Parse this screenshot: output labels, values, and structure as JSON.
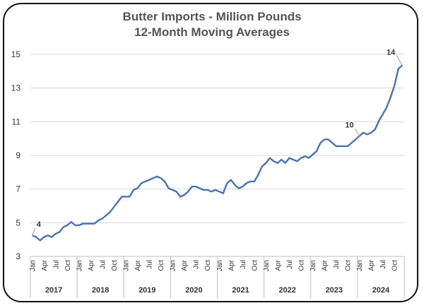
{
  "chart_data": {
    "type": "line",
    "title_line1": "Butter Imports - Million Pounds",
    "title_line2": "12-Month Moving Averages",
    "ylim": [
      3,
      15
    ],
    "yticks": [
      3,
      5,
      7,
      9,
      11,
      13,
      15
    ],
    "grid": true,
    "line_color": "#4a72b0",
    "years": [
      "2017",
      "2018",
      "2019",
      "2020",
      "2021",
      "2022",
      "2023",
      "2024"
    ],
    "month_ticks": [
      "Jan",
      "Apr",
      "Jul",
      "Oct"
    ],
    "values": [
      4.25,
      4.15,
      3.95,
      4.15,
      4.25,
      4.15,
      4.35,
      4.45,
      4.75,
      4.85,
      5.05,
      4.85,
      4.85,
      4.95,
      4.95,
      4.95,
      4.95,
      5.15,
      5.25,
      5.45,
      5.65,
      5.95,
      6.25,
      6.55,
      6.55,
      6.55,
      6.95,
      7.05,
      7.35,
      7.45,
      7.55,
      7.65,
      7.75,
      7.65,
      7.45,
      7.05,
      6.95,
      6.85,
      6.55,
      6.65,
      6.85,
      7.15,
      7.15,
      7.05,
      6.95,
      6.95,
      6.85,
      6.95,
      6.85,
      6.75,
      7.35,
      7.55,
      7.25,
      7.05,
      7.15,
      7.35,
      7.45,
      7.45,
      7.85,
      8.35,
      8.55,
      8.85,
      8.65,
      8.55,
      8.75,
      8.55,
      8.85,
      8.75,
      8.65,
      8.85,
      8.95,
      8.85,
      9.05,
      9.25,
      9.75,
      9.95,
      9.95,
      9.75,
      9.55,
      9.55,
      9.55,
      9.55,
      9.75,
      9.95,
      10.15,
      10.35,
      10.25,
      10.35,
      10.55,
      11.05,
      11.45,
      11.85,
      12.45,
      13.15,
      14.15,
      14.35
    ],
    "annotations": [
      {
        "label": "4",
        "index": 0
      },
      {
        "label": "10",
        "index": 84
      },
      {
        "label": "14",
        "index": 95
      }
    ]
  }
}
